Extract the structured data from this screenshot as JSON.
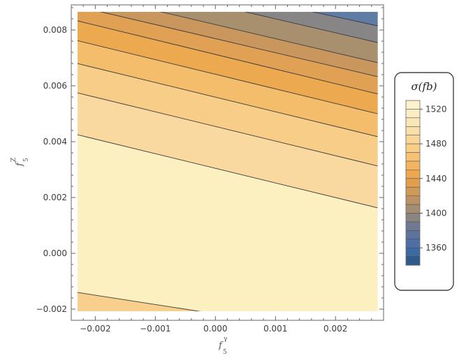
{
  "chart_data": {
    "type": "contour",
    "xlabel": "f",
    "xlabel_sub": "5",
    "xlabel_sup": "γ",
    "ylabel": "f",
    "ylabel_sub": "5",
    "ylabel_sup": "Z",
    "xlim": [
      -0.0024,
      0.0028
    ],
    "ylim": [
      -0.0024,
      0.0089
    ],
    "xticks": [
      -0.002,
      -0.001,
      0.0,
      0.001,
      0.002
    ],
    "xtick_labels": [
      "−0.002",
      "−0.001",
      "0.000",
      "0.001",
      "0.002"
    ],
    "yticks": [
      -0.002,
      0.0,
      0.002,
      0.004,
      0.006,
      0.008
    ],
    "ytick_labels": [
      "−0.002",
      "0.000",
      "0.002",
      "0.004",
      "0.006",
      "0.008"
    ],
    "contour_lines": [
      {
        "points": [
          [
            -0.0023,
            -0.0014
          ],
          [
            0.0004,
            -0.0023
          ]
        ]
      },
      {
        "points": [
          [
            -0.0023,
            0.00425
          ],
          [
            0.0027,
            0.00163
          ]
        ]
      },
      {
        "points": [
          [
            -0.0023,
            0.00575
          ],
          [
            0.0027,
            0.00313
          ]
        ]
      },
      {
        "points": [
          [
            -0.0023,
            0.0068
          ],
          [
            0.0027,
            0.00418
          ]
        ]
      },
      {
        "points": [
          [
            -0.0023,
            0.00762
          ],
          [
            0.0027,
            0.005
          ]
        ]
      },
      {
        "points": [
          [
            -0.0023,
            0.00833
          ],
          [
            0.0027,
            0.00571
          ]
        ]
      },
      {
        "points": [
          [
            -0.0023,
            0.00885
          ],
          [
            0.0027,
            0.00633
          ]
        ]
      },
      {
        "points": [
          [
            -0.0012,
            0.0088
          ],
          [
            0.0027,
            0.00683
          ]
        ]
      },
      {
        "points": [
          [
            0.0002,
            0.0088
          ],
          [
            0.0027,
            0.00755
          ]
        ]
      },
      {
        "points": [
          [
            0.0013,
            0.0088
          ],
          [
            0.0027,
            0.00815
          ]
        ]
      }
    ],
    "regions": [
      {
        "fill": "#fdf0c0",
        "polygon": [
          [
            -0.0023,
            0.00425
          ],
          [
            0.0027,
            0.00163
          ],
          [
            0.0027,
            -0.0023
          ],
          [
            0.0004,
            -0.0023
          ],
          [
            -0.0023,
            -0.0014
          ]
        ]
      },
      {
        "fill": "#f8cf8c",
        "polygon": [
          [
            -0.0023,
            -0.0014
          ],
          [
            0.0004,
            -0.0023
          ],
          [
            -0.0023,
            -0.0023
          ]
        ]
      },
      {
        "fill": "#fad9a0",
        "polygon": [
          [
            -0.0023,
            0.00575
          ],
          [
            0.0027,
            0.00313
          ],
          [
            0.0027,
            0.00163
          ],
          [
            -0.0023,
            0.00425
          ]
        ]
      },
      {
        "fill": "#f8cd88",
        "polygon": [
          [
            -0.0023,
            0.0068
          ],
          [
            0.0027,
            0.00418
          ],
          [
            0.0027,
            0.00313
          ],
          [
            -0.0023,
            0.00575
          ]
        ]
      },
      {
        "fill": "#f4bd6c",
        "polygon": [
          [
            -0.0023,
            0.00762
          ],
          [
            0.0027,
            0.005
          ],
          [
            0.0027,
            0.00418
          ],
          [
            -0.0023,
            0.0068
          ]
        ]
      },
      {
        "fill": "#eda950",
        "polygon": [
          [
            -0.0023,
            0.00833
          ],
          [
            0.0027,
            0.00571
          ],
          [
            0.0027,
            0.005
          ],
          [
            -0.0023,
            0.00762
          ]
        ]
      },
      {
        "fill": "#e1a155",
        "polygon": [
          [
            -0.0023,
            0.00885
          ],
          [
            0.0027,
            0.00633
          ],
          [
            0.0027,
            0.00571
          ],
          [
            -0.0023,
            0.00833
          ]
        ]
      },
      {
        "fill": "#c9965e",
        "polygon": [
          [
            -0.0023,
            0.0088
          ],
          [
            -0.0012,
            0.0088
          ],
          [
            0.0027,
            0.00683
          ],
          [
            0.0027,
            0.00633
          ],
          [
            -0.0023,
            0.00885
          ]
        ]
      },
      {
        "fill": "#a8906f",
        "polygon": [
          [
            -0.0012,
            0.0088
          ],
          [
            0.0002,
            0.0088
          ],
          [
            0.0027,
            0.00755
          ],
          [
            0.0027,
            0.00683
          ]
        ]
      },
      {
        "fill": "#888586",
        "polygon": [
          [
            0.0002,
            0.0088
          ],
          [
            0.0013,
            0.0088
          ],
          [
            0.0027,
            0.00815
          ],
          [
            0.0027,
            0.00755
          ]
        ]
      },
      {
        "fill": "#5f7ca4",
        "polygon": [
          [
            0.0013,
            0.0088
          ],
          [
            0.0027,
            0.0088
          ],
          [
            0.0027,
            0.00815
          ]
        ]
      }
    ],
    "legend": {
      "title": "σ(fb)",
      "placement": "right",
      "levels": [
        {
          "value": 1345,
          "color": "#2e5a8c"
        },
        {
          "value": 1355,
          "color": "#3e6aa4"
        },
        {
          "value": 1365,
          "color": "#4d6fa5"
        },
        {
          "value": 1375,
          "color": "#5d739e"
        },
        {
          "value": 1385,
          "color": "#6f7a92"
        },
        {
          "value": 1395,
          "color": "#8c8584"
        },
        {
          "value": 1405,
          "color": "#a58c74"
        },
        {
          "value": 1415,
          "color": "#ba9266"
        },
        {
          "value": 1425,
          "color": "#cf9a58"
        },
        {
          "value": 1435,
          "color": "#e2a04e"
        },
        {
          "value": 1445,
          "color": "#eda84f"
        },
        {
          "value": 1455,
          "color": "#f3b45f"
        },
        {
          "value": 1465,
          "color": "#f6c273"
        },
        {
          "value": 1475,
          "color": "#f8cd86"
        },
        {
          "value": 1485,
          "color": "#f9d696"
        },
        {
          "value": 1495,
          "color": "#fadfa8"
        },
        {
          "value": 1505,
          "color": "#fbe6b6"
        },
        {
          "value": 1515,
          "color": "#fcedc2"
        },
        {
          "value": 1525,
          "color": "#fdf2cb"
        }
      ],
      "range": [
        1340,
        1530
      ],
      "ticks": [
        1360,
        1400,
        1440,
        1480,
        1520
      ],
      "tick_labels": [
        "1360",
        "1400",
        "1440",
        "1480",
        "1520"
      ],
      "contour_ticks": [
        1350,
        1370,
        1380,
        1390,
        1410,
        1420,
        1430,
        1450,
        1460,
        1470,
        1490,
        1500,
        1510
      ]
    }
  }
}
